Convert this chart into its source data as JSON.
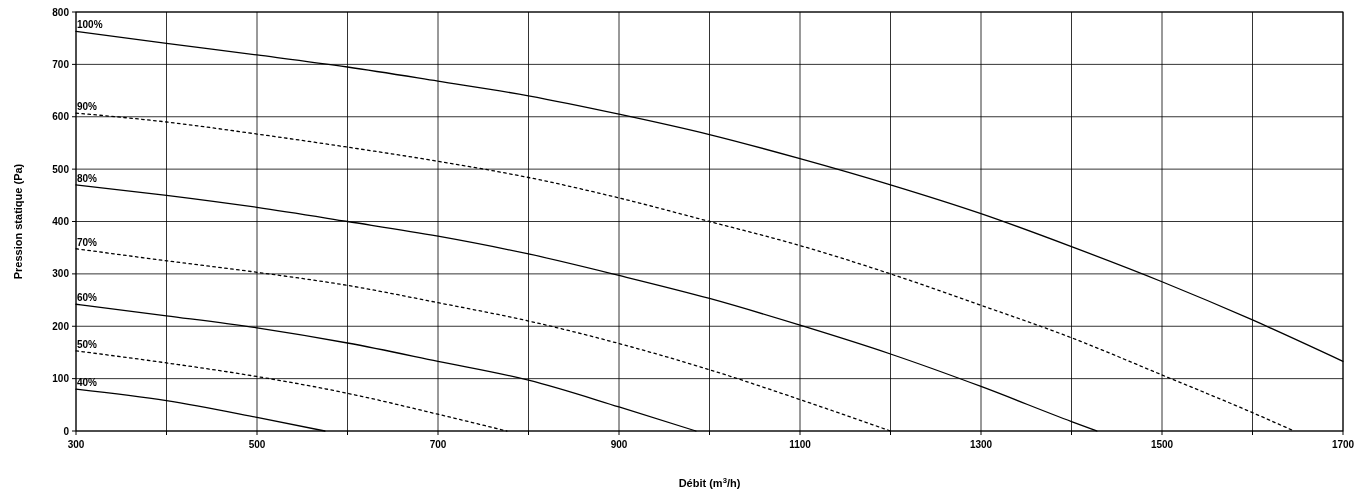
{
  "chart_data": {
    "type": "line",
    "xlabel": "Débit (m$^{3}$/h)",
    "ylabel": "Pression statique (Pa)",
    "xlim": [
      300,
      1700
    ],
    "ylim": [
      0,
      800
    ],
    "xticks": [
      300,
      {
        "value": 400,
        "label": null
      },
      500,
      {
        "value": 600,
        "label": null
      },
      700,
      {
        "value": 800,
        "label": null
      },
      900,
      {
        "value": 1000,
        "label": null
      },
      1100,
      {
        "value": 1200,
        "label": null
      },
      1300,
      {
        "value": 1400,
        "label": null
      },
      1500,
      {
        "value": 1600,
        "label": null
      },
      1700
    ],
    "yticks": [
      0,
      100,
      200,
      300,
      400,
      500,
      600,
      700,
      800
    ],
    "grid": true,
    "series": [
      {
        "name": "100%",
        "color": "#000000",
        "line_style": "solid",
        "x": [
          300,
          400,
          500,
          600,
          700,
          800,
          900,
          1000,
          1100,
          1200,
          1300,
          1400,
          1500,
          1600,
          1700
        ],
        "values": [
          763,
          740,
          718,
          695,
          668,
          640,
          605,
          566,
          520,
          470,
          415,
          352,
          285,
          212,
          133
        ]
      },
      {
        "name": "90%",
        "color": "#000000",
        "line_style": "dotted",
        "x": [
          300,
          400,
          500,
          600,
          700,
          800,
          900,
          1000,
          1100,
          1200,
          1300,
          1400,
          1500,
          1600,
          1646
        ],
        "values": [
          607,
          590,
          567,
          542,
          515,
          484,
          445,
          400,
          354,
          300,
          240,
          178,
          107,
          35,
          0
        ]
      },
      {
        "name": "80%",
        "color": "#000000",
        "line_style": "solid",
        "x": [
          300,
          400,
          500,
          600,
          700,
          800,
          900,
          1000,
          1100,
          1200,
          1300,
          1400,
          1428
        ],
        "values": [
          470,
          450,
          427,
          400,
          372,
          338,
          297,
          253,
          202,
          147,
          85,
          18,
          0
        ]
      },
      {
        "name": "70%",
        "color": "#000000",
        "line_style": "dotted",
        "x": [
          300,
          400,
          500,
          600,
          700,
          800,
          900,
          1000,
          1100,
          1200
        ],
        "values": [
          348,
          325,
          303,
          278,
          245,
          210,
          167,
          117,
          60,
          0
        ]
      },
      {
        "name": "60%",
        "color": "#000000",
        "line_style": "solid",
        "x": [
          300,
          400,
          500,
          600,
          700,
          800,
          900,
          985
        ],
        "values": [
          242,
          220,
          197,
          168,
          133,
          97,
          46,
          0
        ]
      },
      {
        "name": "50%",
        "color": "#000000",
        "line_style": "dotted",
        "x": [
          300,
          400,
          500,
          600,
          700,
          776
        ],
        "values": [
          153,
          130,
          104,
          72,
          32,
          0
        ]
      },
      {
        "name": "40%",
        "color": "#000000",
        "line_style": "solid",
        "x": [
          300,
          400,
          500,
          575
        ],
        "values": [
          80,
          58,
          26,
          0
        ]
      }
    ]
  }
}
